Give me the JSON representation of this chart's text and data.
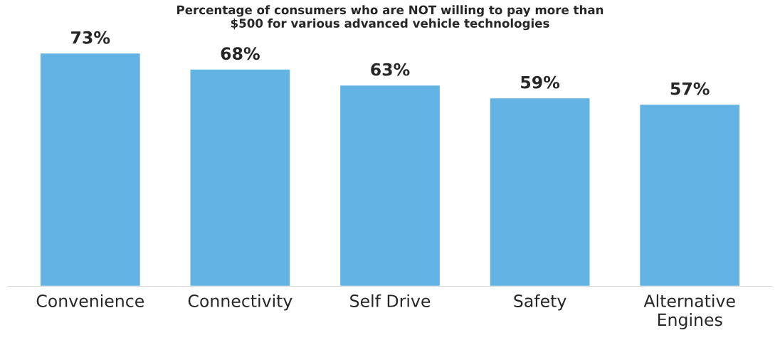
{
  "chart_data": {
    "type": "bar",
    "title": "Percentage of consumers who are NOT willing to pay more than\n$500 for various advanced vehicle technologies",
    "categories": [
      "Convenience",
      "Connectivity",
      "Self Drive",
      "Safety",
      "Alternative\nEngines"
    ],
    "values": [
      73,
      68,
      63,
      59,
      57
    ],
    "value_labels": [
      "73%",
      "68%",
      "63%",
      "59%",
      "57%"
    ],
    "color": "#63b4e4",
    "grid": false,
    "legend": false
  }
}
